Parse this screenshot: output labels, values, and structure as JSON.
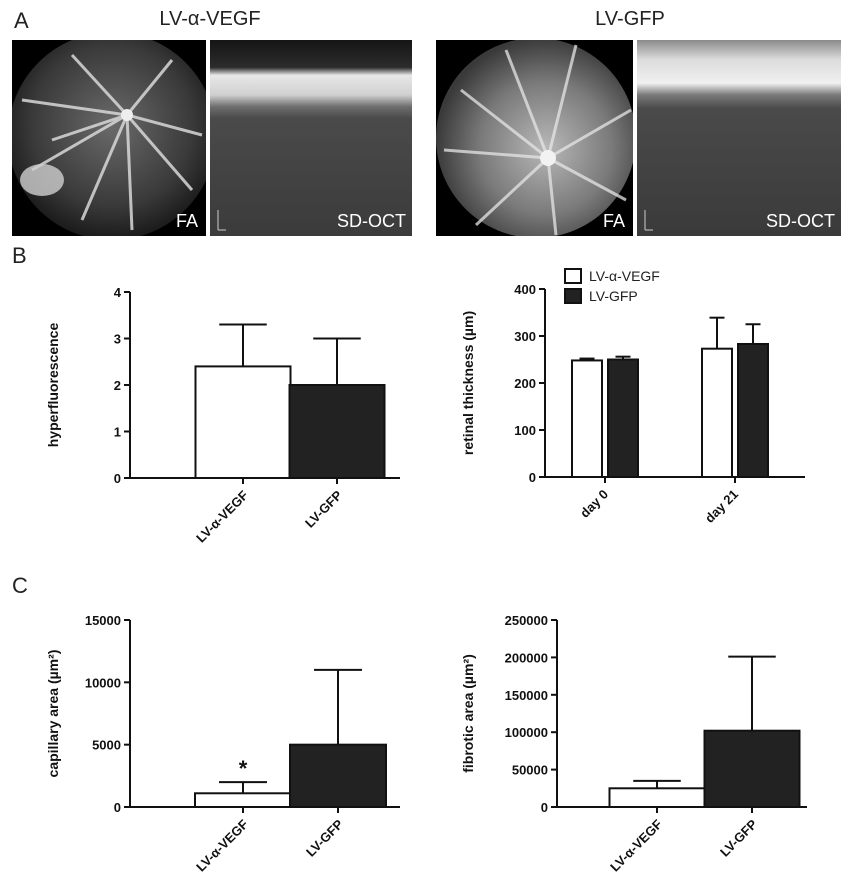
{
  "panels": {
    "a": "A",
    "b": "B",
    "c": "C"
  },
  "images": {
    "left_title": "LV-α-VEGF",
    "right_title": "LV-GFP",
    "fa_label": "FA",
    "oct_label": "SD-OCT"
  },
  "chart_data": [
    {
      "id": "hyper",
      "type": "bar",
      "ylabel": "hyperfluorescence",
      "categories": [
        "LV-α-VEGF",
        "LV-GFP"
      ],
      "values": [
        2.4,
        2.0
      ],
      "errors": [
        0.9,
        1.0
      ],
      "colors": [
        "#ffffff",
        "#222222"
      ],
      "ylim": [
        0,
        4
      ],
      "yticks": [
        "0",
        "1",
        "2",
        "3",
        "4"
      ]
    },
    {
      "id": "thickness",
      "type": "bar",
      "ylabel": "retinal thickness (µm)",
      "categories": [
        "day 0",
        "day 21"
      ],
      "series": [
        {
          "name": "LV-α-VEGF",
          "color": "#ffffff",
          "values": [
            248,
            273
          ],
          "errors": [
            4,
            66
          ]
        },
        {
          "name": "LV-GFP",
          "color": "#222222",
          "values": [
            250,
            283
          ],
          "errors": [
            6,
            42
          ]
        }
      ],
      "legend": "top-left",
      "ylim": [
        0,
        400
      ],
      "yticks": [
        "0",
        "100",
        "200",
        "300",
        "400"
      ]
    },
    {
      "id": "capillary",
      "type": "bar",
      "ylabel": "capillary area (µm²)",
      "categories": [
        "LV-α-VEGF",
        "LV-GFP"
      ],
      "values": [
        1100,
        5000
      ],
      "errors": [
        900,
        6000
      ],
      "colors": [
        "#ffffff",
        "#222222"
      ],
      "annotations": [
        "*",
        ""
      ],
      "ylim": [
        0,
        15000
      ],
      "yticks": [
        "0",
        "5000",
        "10000",
        "15000"
      ]
    },
    {
      "id": "fibrotic",
      "type": "bar",
      "ylabel": "fibrotic area (µm²)",
      "categories": [
        "LV-α-VEGF",
        "LV-GFP"
      ],
      "values": [
        25000,
        102000
      ],
      "errors": [
        10000,
        99000
      ],
      "colors": [
        "#ffffff",
        "#222222"
      ],
      "ylim": [
        0,
        250000
      ],
      "yticks": [
        "0",
        "50000",
        "100000",
        "150000",
        "200000",
        "250000"
      ]
    }
  ]
}
